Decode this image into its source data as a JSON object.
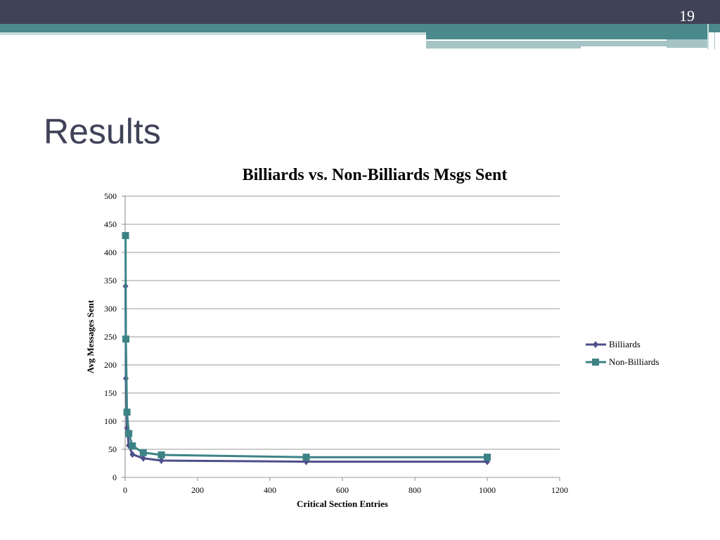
{
  "slide": {
    "number": "19",
    "title": "Results"
  },
  "colors": {
    "billiards": "#4d4f8a",
    "non_billiards": "#3d8386",
    "grid": "#999999"
  },
  "chart_data": {
    "type": "line",
    "title": "Billiards vs. Non-Billiards Msgs Sent",
    "xlabel": "Critical Section Entries",
    "ylabel": "Avg Messages Sent",
    "xlim": [
      0,
      1200
    ],
    "ylim": [
      0,
      500
    ],
    "x_ticks": [
      0,
      200,
      400,
      600,
      800,
      1000,
      1200
    ],
    "y_ticks": [
      0,
      50,
      100,
      150,
      200,
      250,
      300,
      350,
      400,
      450,
      500
    ],
    "grid": "horizontal",
    "legend_position": "right",
    "series": [
      {
        "name": "Billiards",
        "marker": "diamond",
        "x": [
          1,
          2,
          5,
          10,
          20,
          50,
          100,
          500,
          1000
        ],
        "y": [
          340,
          176,
          88,
          57,
          41,
          34,
          30,
          28,
          28
        ]
      },
      {
        "name": "Non-Billiards",
        "marker": "square",
        "x": [
          1,
          2,
          5,
          10,
          20,
          50,
          100,
          500,
          1000
        ],
        "y": [
          430,
          246,
          116,
          78,
          56,
          44,
          40,
          36,
          36
        ]
      }
    ]
  }
}
